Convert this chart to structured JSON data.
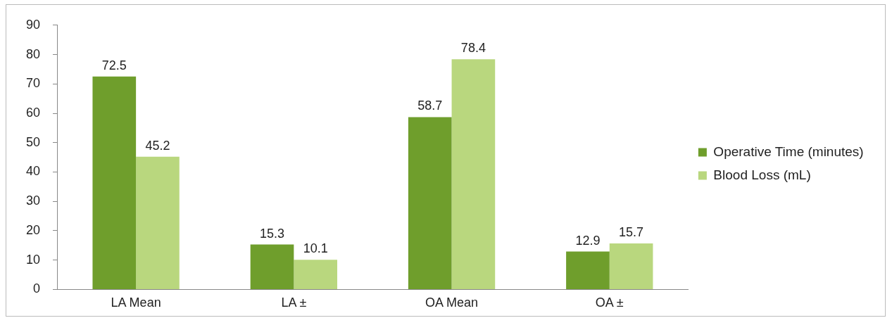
{
  "chart_data": {
    "type": "bar",
    "categories": [
      "LA Mean",
      "LA ±",
      "OA Mean",
      "OA ±"
    ],
    "series": [
      {
        "name": "Operative Time (minutes)",
        "color": "#6f9e2c",
        "values": [
          72.5,
          15.3,
          58.7,
          12.9
        ]
      },
      {
        "name": "Blood Loss (mL)",
        "color": "#b9d77e",
        "values": [
          45.2,
          10.1,
          78.4,
          15.7
        ]
      }
    ],
    "ylim": [
      0,
      90
    ],
    "yticks": [
      0,
      10,
      20,
      30,
      40,
      50,
      60,
      70,
      80,
      90
    ],
    "grid": false,
    "legend": "right",
    "data_labels": true
  }
}
